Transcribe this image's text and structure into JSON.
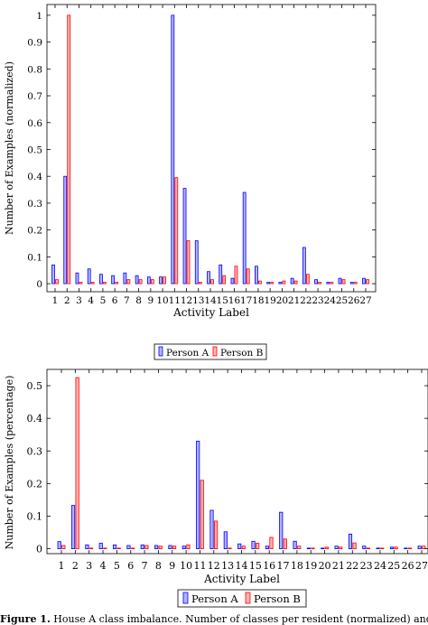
{
  "chart_data": [
    {
      "type": "bar",
      "xlabel": "Activity Label",
      "ylabel": "Number of Examples (normalized)",
      "categories": [
        "1",
        "2",
        "3",
        "4",
        "5",
        "6",
        "7",
        "8",
        "9",
        "10",
        "11",
        "12",
        "13",
        "14",
        "15",
        "16",
        "17",
        "18",
        "19",
        "20",
        "21",
        "22",
        "23",
        "24",
        "25",
        "26",
        "27"
      ],
      "yticks": [
        "0",
        "0.1",
        "0.2",
        "0.3",
        "0.4",
        "0.5",
        "0.6",
        "0.7",
        "0.8",
        "0.9",
        "1"
      ],
      "ylim": [
        -0.03,
        1.04
      ],
      "series": [
        {
          "name": "Person A",
          "color": "#0000ff",
          "fill": "#b3b3ff",
          "values": [
            0.07,
            0.4,
            0.04,
            0.055,
            0.035,
            0.03,
            0.04,
            0.03,
            0.025,
            0.025,
            1.0,
            0.355,
            0.16,
            0.045,
            0.07,
            0.02,
            0.34,
            0.065,
            0.005,
            0.005,
            0.02,
            0.135,
            0.015,
            0.005,
            0.02,
            0.005,
            0.02
          ]
        },
        {
          "name": "Person B",
          "color": "#ff0000",
          "fill": "#ffb3b3",
          "values": [
            0.015,
            1.0,
            0.005,
            0.005,
            0.005,
            0.005,
            0.015,
            0.015,
            0.015,
            0.025,
            0.395,
            0.16,
            0.005,
            0.015,
            0.03,
            0.065,
            0.055,
            0.01,
            0.005,
            0.01,
            0.01,
            0.035,
            0.005,
            0.005,
            0.015,
            0.005,
            0.015
          ]
        }
      ],
      "legend": {
        "position": "bottom",
        "items": [
          "Person A",
          "Person B"
        ]
      }
    },
    {
      "type": "bar",
      "xlabel": "Activity Label",
      "ylabel": "Number of Examples (percentage)",
      "categories": [
        "1",
        "2",
        "3",
        "4",
        "5",
        "6",
        "7",
        "8",
        "9",
        "10",
        "11",
        "12",
        "13",
        "14",
        "15",
        "16",
        "17",
        "18",
        "19",
        "20",
        "21",
        "22",
        "23",
        "24",
        "25",
        "26",
        "27"
      ],
      "yticks": [
        "0",
        "0.1",
        "0.2",
        "0.3",
        "0.4",
        "0.5"
      ],
      "ylim": [
        -0.015,
        0.55
      ],
      "series": [
        {
          "name": "Person A",
          "color": "#0000ff",
          "fill": "#b3b3ff",
          "values": [
            0.022,
            0.133,
            0.012,
            0.017,
            0.012,
            0.01,
            0.012,
            0.01,
            0.01,
            0.008,
            0.33,
            0.118,
            0.052,
            0.015,
            0.023,
            0.008,
            0.112,
            0.023,
            0.002,
            0.002,
            0.008,
            0.045,
            0.008,
            0.002,
            0.005,
            0.002,
            0.008
          ]
        },
        {
          "name": "Person B",
          "color": "#ff0000",
          "fill": "#ffb3b3",
          "values": [
            0.01,
            0.525,
            0.002,
            0.002,
            0.002,
            0.002,
            0.01,
            0.008,
            0.008,
            0.012,
            0.21,
            0.085,
            0.002,
            0.008,
            0.017,
            0.035,
            0.03,
            0.008,
            0.002,
            0.005,
            0.005,
            0.018,
            0.002,
            0.002,
            0.005,
            0.002,
            0.008
          ]
        }
      ],
      "legend": {
        "position": "bottom",
        "items": [
          "Person A",
          "Person B"
        ]
      }
    }
  ],
  "caption": {
    "label": "Figure 1.",
    "text": " House A class imbalance. Number of classes per resident (normalized) and"
  }
}
